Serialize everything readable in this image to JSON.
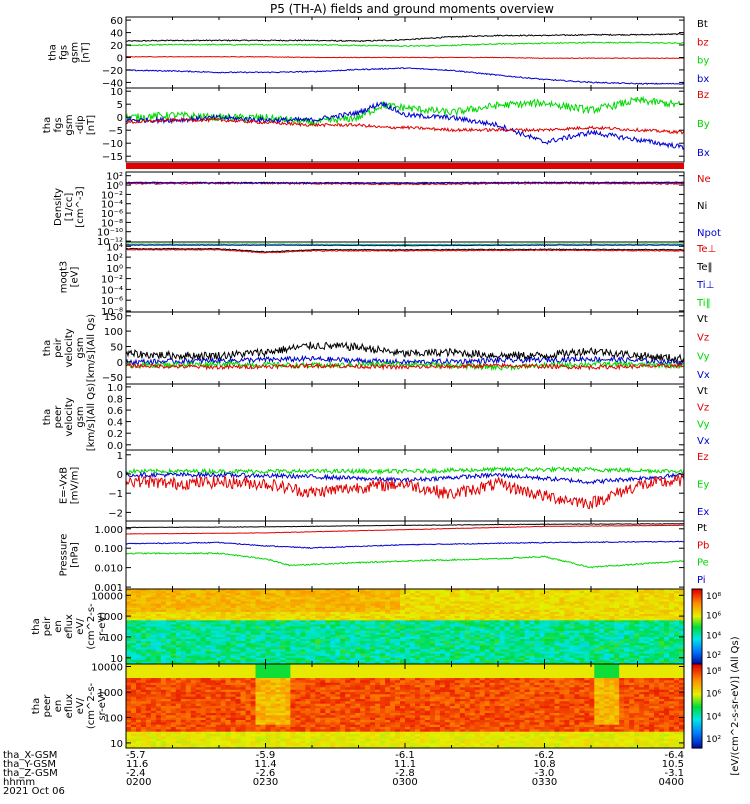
{
  "title": "P5 (TH-A) fields and ground moments overview",
  "colors": {
    "black": "#000000",
    "red": "#e00000",
    "green": "#00d800",
    "blue": "#0000d0"
  },
  "chart_data": [
    {
      "id": "p1",
      "type": "line",
      "ylabel_lines": [
        "tha",
        "fgs",
        "gsm",
        "[nT]"
      ],
      "yticks": [
        "60",
        "40",
        "20",
        "0",
        "−20",
        "−40"
      ],
      "ylim": [
        -40,
        60
      ],
      "scale": "linear",
      "legend": [
        {
          "text": "Bt",
          "color": "black"
        },
        {
          "text": "bz",
          "color": "red"
        },
        {
          "text": "by",
          "color": "green"
        },
        {
          "text": "bx",
          "color": "blue"
        }
      ],
      "series": [
        {
          "color": "black",
          "x": [
            0,
            10,
            20,
            30,
            40,
            50,
            60,
            70,
            80,
            90,
            100,
            110,
            120
          ],
          "y": [
            26,
            27,
            27,
            27,
            27,
            26,
            28,
            32,
            34,
            34,
            35,
            35,
            36
          ],
          "noise": 0.8
        },
        {
          "color": "green",
          "x": [
            0,
            10,
            20,
            30,
            40,
            50,
            60,
            70,
            80,
            90,
            100,
            110,
            120
          ],
          "y": [
            20,
            21,
            21,
            21,
            21,
            20,
            19,
            20,
            22,
            23,
            24,
            24,
            23
          ],
          "noise": 0.8
        },
        {
          "color": "red",
          "x": [
            0,
            10,
            20,
            30,
            40,
            50,
            60,
            70,
            80,
            90,
            100,
            110,
            120
          ],
          "y": [
            4,
            4,
            4,
            4,
            3,
            3,
            3,
            3,
            3,
            2,
            2,
            2,
            2
          ],
          "noise": 0.4
        },
        {
          "color": "blue",
          "x": [
            0,
            10,
            20,
            30,
            40,
            50,
            60,
            70,
            80,
            90,
            100,
            110,
            120
          ],
          "y": [
            -15,
            -16,
            -18,
            -18,
            -17,
            -14,
            -12,
            -15,
            -22,
            -28,
            -32,
            -34,
            -34
          ],
          "noise": 0.8
        }
      ]
    },
    {
      "id": "p2",
      "type": "line",
      "ylabel_lines": [
        "tha",
        "fgs",
        "gsm",
        "-dip",
        "[nT]"
      ],
      "yticks": [
        "10",
        "5",
        "0",
        "−5",
        "−10",
        "−15"
      ],
      "ylim": [
        -18,
        12
      ],
      "scale": "linear",
      "legend": [
        {
          "text": "Bz",
          "color": "red"
        },
        {
          "text": "By",
          "color": "green"
        },
        {
          "text": "Bx",
          "color": "blue"
        }
      ],
      "series": [
        {
          "color": "green",
          "x": [
            0,
            10,
            20,
            30,
            40,
            50,
            55,
            60,
            70,
            80,
            90,
            100,
            110,
            120
          ],
          "y": [
            0,
            1,
            0,
            0,
            -2,
            0,
            5,
            4,
            2,
            5,
            6,
            3,
            7,
            5
          ],
          "noise": 1.5
        },
        {
          "color": "blue",
          "x": [
            0,
            10,
            20,
            30,
            40,
            50,
            55,
            60,
            70,
            80,
            90,
            100,
            110,
            120
          ],
          "y": [
            -1,
            -1,
            0,
            -1,
            -1,
            2,
            6,
            1,
            0,
            -3,
            -10,
            -6,
            -9,
            -12
          ],
          "noise": 1.0
        },
        {
          "color": "red",
          "x": [
            0,
            10,
            20,
            30,
            40,
            50,
            55,
            60,
            70,
            80,
            90,
            100,
            110,
            120
          ],
          "y": [
            -2,
            -1,
            -1,
            -2,
            -3,
            -3,
            -4,
            -4,
            -5,
            -5,
            -5,
            -4,
            -5,
            -6
          ],
          "noise": 0.6
        }
      ]
    },
    {
      "id": "p3",
      "type": "line",
      "ylabel_lines": [
        "Density",
        "[1/cc]",
        "[cm^-3]"
      ],
      "yticks": [
        "10²",
        "10⁰",
        "10⁻²",
        "10⁻⁴",
        "10⁻⁶",
        "10⁻⁸",
        "10⁻¹⁰",
        "10⁻¹²"
      ],
      "ylim": [
        -13,
        2.5
      ],
      "scale": "log",
      "legend": [
        {
          "text": "Ne",
          "color": "red"
        },
        {
          "text": "Ni",
          "color": "black"
        },
        {
          "text": "Npot",
          "color": "blue"
        }
      ],
      "series": [
        {
          "color": "black",
          "x": [
            0,
            30,
            60,
            90,
            120
          ],
          "y": [
            0.1,
            0.1,
            0.0,
            0.1,
            0.1
          ],
          "noise": 0.15
        },
        {
          "color": "red",
          "x": [
            0,
            30,
            60,
            90,
            120
          ],
          "y": [
            -0.1,
            0.0,
            -0.2,
            0.0,
            -0.1
          ],
          "noise": 0.15
        },
        {
          "color": "blue",
          "x": [
            0,
            30,
            60,
            90,
            120
          ],
          "y": [
            0.2,
            0.1,
            0.1,
            0.2,
            0.2
          ],
          "noise": 0.1
        }
      ]
    },
    {
      "id": "p4",
      "type": "line",
      "ylabel_lines": [
        "moqt3",
        "[eV]"
      ],
      "yticks": [
        "10⁴",
        "10²",
        "10⁰",
        "10⁻²",
        "10⁻⁴",
        "10⁻⁶",
        "10⁻⁸"
      ],
      "ylim": [
        -9,
        4.5
      ],
      "scale": "log",
      "legend": [
        {
          "text": "Te⊥",
          "color": "red"
        },
        {
          "text": "Te‖",
          "color": "black"
        },
        {
          "text": "Ti⊥",
          "color": "blue"
        },
        {
          "text": "Ti‖",
          "color": "green"
        }
      ],
      "series": [
        {
          "color": "green",
          "x": [
            0,
            30,
            60,
            90,
            120
          ],
          "y": [
            4.1,
            4.1,
            4.0,
            4.1,
            4.1
          ],
          "noise": 0.05
        },
        {
          "color": "blue",
          "x": [
            0,
            30,
            60,
            90,
            120
          ],
          "y": [
            3.9,
            3.9,
            3.8,
            3.9,
            3.9
          ],
          "noise": 0.05
        },
        {
          "color": "black",
          "x": [
            0,
            20,
            30,
            40,
            60,
            90,
            120
          ],
          "y": [
            3.2,
            3.2,
            2.6,
            3.0,
            3.0,
            3.1,
            3.0
          ],
          "noise": 0.08
        },
        {
          "color": "red",
          "x": [
            0,
            20,
            30,
            40,
            60,
            90,
            120
          ],
          "y": [
            3.0,
            3.0,
            2.4,
            2.8,
            2.8,
            2.9,
            2.8
          ],
          "noise": 0.08
        }
      ]
    },
    {
      "id": "p5",
      "type": "line",
      "ylabel_lines": [
        "tha",
        "peir",
        "velocity",
        "gsm",
        "[km/s](All Qs)"
      ],
      "yticks": [
        "150",
        "100",
        "50",
        "0",
        "−50"
      ],
      "ylim": [
        -55,
        160
      ],
      "scale": "linear",
      "legend": [
        {
          "text": "Vt",
          "color": "black"
        },
        {
          "text": "Vz",
          "color": "red"
        },
        {
          "text": "Vy",
          "color": "green"
        },
        {
          "text": "Vx",
          "color": "blue"
        }
      ],
      "series": [
        {
          "color": "blue",
          "x": [
            0,
            20,
            40,
            60,
            80,
            100,
            120
          ],
          "y": [
            10,
            15,
            20,
            10,
            15,
            20,
            10
          ],
          "noise": 8
        },
        {
          "color": "green",
          "x": [
            0,
            20,
            40,
            60,
            80,
            100,
            120
          ],
          "y": [
            0,
            5,
            0,
            5,
            -5,
            5,
            0
          ],
          "noise": 8
        },
        {
          "color": "red",
          "x": [
            0,
            20,
            40,
            60,
            80,
            100,
            120
          ],
          "y": [
            0,
            -5,
            0,
            -5,
            0,
            -5,
            0
          ],
          "noise": 6
        },
        {
          "color": "black",
          "x": [
            0,
            10,
            20,
            30,
            40,
            50,
            60,
            70,
            80,
            90,
            100,
            110,
            120
          ],
          "y": [
            35,
            30,
            30,
            40,
            60,
            55,
            35,
            40,
            30,
            30,
            45,
            30,
            20
          ],
          "noise": 12
        }
      ]
    },
    {
      "id": "p6",
      "type": "line",
      "ylabel_lines": [
        "tha",
        "peer",
        "velocity",
        "gsm",
        "[km/s](All Qs)"
      ],
      "yticks": [
        "1.0",
        "0.8",
        "0.6",
        "0.4",
        "0.2",
        "0.0"
      ],
      "ylim": [
        -0.02,
        1.04
      ],
      "scale": "linear",
      "legend": [
        {
          "text": "Vt",
          "color": "black"
        },
        {
          "text": "Vz",
          "color": "red"
        },
        {
          "text": "Vy",
          "color": "green"
        },
        {
          "text": "Vx",
          "color": "blue"
        }
      ],
      "series": []
    },
    {
      "id": "p7",
      "type": "line",
      "ylabel_lines": [
        "E=-VxB",
        "[mV/m]"
      ],
      "yticks": [
        "1",
        "0",
        "−1",
        "−2"
      ],
      "ylim": [
        -2.6,
        1.4
      ],
      "scale": "linear",
      "legend": [
        {
          "text": "Ez",
          "color": "red"
        },
        {
          "text": "Ey",
          "color": "green"
        },
        {
          "text": "Ex",
          "color": "blue"
        }
      ],
      "series": [
        {
          "color": "green",
          "x": [
            0,
            20,
            40,
            60,
            80,
            100,
            120
          ],
          "y": [
            0.2,
            0.2,
            0.2,
            0.2,
            0.3,
            0.3,
            0.2
          ],
          "noise": 0.12
        },
        {
          "color": "blue",
          "x": [
            0,
            20,
            40,
            60,
            80,
            100,
            120
          ],
          "y": [
            0,
            0,
            -0.1,
            -0.3,
            0,
            -0.4,
            0
          ],
          "noise": 0.12
        },
        {
          "color": "red",
          "x": [
            0,
            10,
            20,
            30,
            40,
            50,
            60,
            70,
            80,
            90,
            100,
            110,
            120
          ],
          "y": [
            -0.3,
            -0.5,
            -0.4,
            -0.5,
            -1,
            -0.7,
            -0.5,
            -1.1,
            -0.5,
            -1.2,
            -1.6,
            -0.6,
            -0.3
          ],
          "noise": 0.35
        }
      ]
    },
    {
      "id": "p8",
      "type": "line",
      "ylabel_lines": [
        "Pressure",
        "[nPa]"
      ],
      "yticks": [
        "1.000",
        "0.100",
        "0.010",
        "0.001"
      ],
      "ylim": [
        -3,
        0.15
      ],
      "scale": "log",
      "legend": [
        {
          "text": "Pt",
          "color": "black"
        },
        {
          "text": "Pb",
          "color": "red"
        },
        {
          "text": "Pe",
          "color": "green"
        },
        {
          "text": "Pi",
          "color": "blue"
        }
      ],
      "series": [
        {
          "color": "black",
          "x": [
            0,
            30,
            60,
            90,
            120
          ],
          "y": [
            -0.15,
            -0.12,
            -0.05,
            0.0,
            0.02
          ],
          "noise": 0.01
        },
        {
          "color": "red",
          "x": [
            0,
            30,
            60,
            90,
            120
          ],
          "y": [
            -0.45,
            -0.4,
            -0.25,
            -0.1,
            -0.05
          ],
          "noise": 0.01
        },
        {
          "color": "blue",
          "x": [
            0,
            20,
            30,
            40,
            60,
            90,
            120
          ],
          "y": [
            -0.9,
            -0.85,
            -1.0,
            -1.1,
            -0.95,
            -0.85,
            -0.8
          ],
          "noise": 0.02
        },
        {
          "color": "green",
          "x": [
            0,
            20,
            30,
            35,
            60,
            80,
            90,
            100,
            120
          ],
          "y": [
            -1.35,
            -1.35,
            -1.6,
            -1.9,
            -1.7,
            -1.6,
            -1.5,
            -2.0,
            -1.7
          ],
          "noise": 0.03
        }
      ]
    },
    {
      "id": "p9",
      "type": "heatmap",
      "ylabel_lines": [
        "tha",
        "peir",
        "en",
        "eflux",
        "eV/",
        "(cm^2-s-",
        "sr-eV)"
      ],
      "yticks": [
        "10000",
        "1000",
        "100",
        "10"
      ],
      "ylim": [
        0.7,
        4.3
      ],
      "scale": "log",
      "colorbar_ticks": [
        "10⁸",
        "10⁶",
        "10⁴",
        "10²"
      ]
    },
    {
      "id": "p10",
      "type": "heatmap",
      "ylabel_lines": [
        "tha",
        "peer",
        "en",
        "eflux",
        "eV/",
        "(cm^2-s-",
        "sr-eV)"
      ],
      "yticks": [
        "10000",
        "1000",
        "100",
        "10"
      ],
      "ylim": [
        0.8,
        4.1
      ],
      "scale": "log",
      "colorbar_ticks": [
        "10⁸",
        "10⁶",
        "10⁴",
        "10²"
      ]
    }
  ],
  "colorbar_label": "[eV/(cm^2-s-sr-eV)] (All Qs)",
  "time_axis": {
    "rows": [
      {
        "label": "tha_X-GSM",
        "values": [
          "-5.7",
          "-5.9",
          "-6.1",
          "-6.2",
          "-6.4"
        ]
      },
      {
        "label": "tha_Y-GSM",
        "values": [
          "11.6",
          "11.4",
          "11.1",
          "10.8",
          "10.5"
        ]
      },
      {
        "label": "tha_Z-GSM",
        "values": [
          "-2.4",
          "-2.6",
          "-2.8",
          "-3.0",
          "-3.1"
        ]
      },
      {
        "label": "hhmm",
        "values": [
          "0200",
          "0230",
          "0300",
          "0330",
          "0400"
        ]
      }
    ],
    "date": "2021 Oct 06"
  }
}
